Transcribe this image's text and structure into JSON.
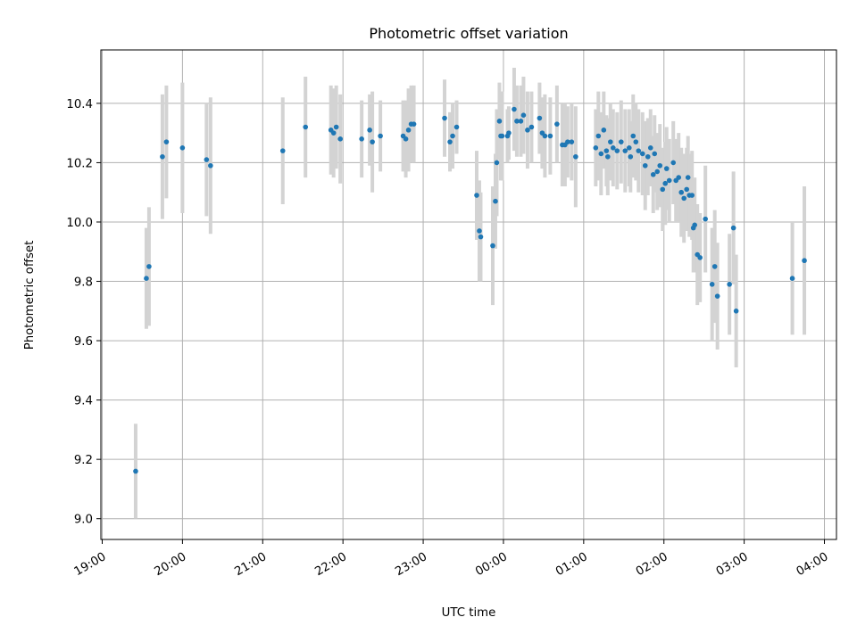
{
  "chart_data": {
    "type": "scatter",
    "title": "Photometric offset variation",
    "xlabel": "UTC time",
    "ylabel": "Photometric offset",
    "xlim": [
      "18:59",
      "04:09"
    ],
    "ylim": [
      8.93,
      10.58
    ],
    "x_ticks": [
      "19:00",
      "20:00",
      "21:00",
      "22:00",
      "23:00",
      "00:00",
      "01:00",
      "02:00",
      "03:00",
      "04:00"
    ],
    "y_ticks": [
      "9.0",
      "9.2",
      "9.4",
      "9.6",
      "9.8",
      "10.0",
      "10.2",
      "10.4"
    ],
    "grid": true,
    "colors": {
      "point": "#1f77b4",
      "errorbar": "#d3d3d3",
      "grid": "#b0b0b0"
    },
    "series": [
      {
        "points": [
          [
            "19:25",
            9.16,
            0.16
          ],
          [
            "19:33",
            9.81,
            0.17
          ],
          [
            "19:35",
            9.85,
            0.2
          ],
          [
            "19:45",
            10.22,
            0.21
          ],
          [
            "19:48",
            10.27,
            0.19
          ],
          [
            "20:00",
            10.25,
            0.22
          ],
          [
            "20:18",
            10.21,
            0.19
          ],
          [
            "20:21",
            10.19,
            0.23
          ],
          [
            "21:15",
            10.24,
            0.18
          ],
          [
            "21:32",
            10.32,
            0.17
          ],
          [
            "21:51",
            10.31,
            0.15
          ],
          [
            "21:53",
            10.3,
            0.15
          ],
          [
            "21:55",
            10.32,
            0.14
          ],
          [
            "21:58",
            10.28,
            0.15
          ],
          [
            "22:14",
            10.28,
            0.13
          ],
          [
            "22:20",
            10.31,
            0.12
          ],
          [
            "22:22",
            10.27,
            0.17
          ],
          [
            "22:28",
            10.29,
            0.12
          ],
          [
            "22:45",
            10.29,
            0.12
          ],
          [
            "22:47",
            10.28,
            0.13
          ],
          [
            "22:49",
            10.31,
            0.14
          ],
          [
            "22:51",
            10.33,
            0.13
          ],
          [
            "22:53",
            10.33,
            0.13
          ],
          [
            "23:16",
            10.35,
            0.13
          ],
          [
            "23:20",
            10.27,
            0.1
          ],
          [
            "23:22",
            10.29,
            0.11
          ],
          [
            "23:25",
            10.32,
            0.09
          ],
          [
            "23:40",
            10.09,
            0.15
          ],
          [
            "23:42",
            9.97,
            0.17
          ],
          [
            "23:43",
            9.95,
            0.15
          ],
          [
            "23:52",
            9.92,
            0.2
          ],
          [
            "23:54",
            10.07,
            0.16
          ],
          [
            "23:55",
            10.2,
            0.18
          ],
          [
            "23:57",
            10.34,
            0.13
          ],
          [
            "23:58",
            10.29,
            0.15
          ],
          [
            "23:59",
            10.29,
            0.15
          ],
          [
            "00:03",
            10.29,
            0.09
          ],
          [
            "00:04",
            10.3,
            0.09
          ],
          [
            "00:08",
            10.38,
            0.14
          ],
          [
            "00:10",
            10.34,
            0.12
          ],
          [
            "00:13",
            10.34,
            0.12
          ],
          [
            "00:15",
            10.36,
            0.13
          ],
          [
            "00:18",
            10.31,
            0.13
          ],
          [
            "00:21",
            10.32,
            0.12
          ],
          [
            "00:27",
            10.35,
            0.12
          ],
          [
            "00:29",
            10.3,
            0.12
          ],
          [
            "00:31",
            10.29,
            0.14
          ],
          [
            "00:35",
            10.29,
            0.13
          ],
          [
            "00:40",
            10.33,
            0.13
          ],
          [
            "00:44",
            10.26,
            0.14
          ],
          [
            "00:46",
            10.26,
            0.14
          ],
          [
            "00:48",
            10.27,
            0.12
          ],
          [
            "00:51",
            10.27,
            0.13
          ],
          [
            "00:54",
            10.22,
            0.17
          ],
          [
            "01:09",
            10.25,
            0.13
          ],
          [
            "01:11",
            10.29,
            0.15
          ],
          [
            "01:13",
            10.23,
            0.14
          ],
          [
            "01:15",
            10.31,
            0.13
          ],
          [
            "01:17",
            10.24,
            0.12
          ],
          [
            "01:18",
            10.22,
            0.13
          ],
          [
            "01:20",
            10.27,
            0.13
          ],
          [
            "01:22",
            10.25,
            0.13
          ],
          [
            "01:25",
            10.24,
            0.13
          ],
          [
            "01:28",
            10.27,
            0.14
          ],
          [
            "01:31",
            10.24,
            0.14
          ],
          [
            "01:34",
            10.25,
            0.13
          ],
          [
            "01:35",
            10.22,
            0.12
          ],
          [
            "01:37",
            10.29,
            0.14
          ],
          [
            "01:39",
            10.27,
            0.13
          ],
          [
            "01:41",
            10.24,
            0.14
          ],
          [
            "01:44",
            10.23,
            0.14
          ],
          [
            "01:46",
            10.19,
            0.15
          ],
          [
            "01:48",
            10.22,
            0.13
          ],
          [
            "01:50",
            10.25,
            0.13
          ],
          [
            "01:52",
            10.16,
            0.13
          ],
          [
            "01:53",
            10.23,
            0.13
          ],
          [
            "01:55",
            10.17,
            0.13
          ],
          [
            "01:57",
            10.19,
            0.14
          ],
          [
            "01:59",
            10.11,
            0.14
          ],
          [
            "02:01",
            10.13,
            0.14
          ],
          [
            "02:02",
            10.18,
            0.14
          ],
          [
            "02:04",
            10.14,
            0.14
          ],
          [
            "02:07",
            10.2,
            0.14
          ],
          [
            "02:09",
            10.14,
            0.14
          ],
          [
            "02:11",
            10.15,
            0.15
          ],
          [
            "02:13",
            10.1,
            0.15
          ],
          [
            "02:15",
            10.08,
            0.15
          ],
          [
            "02:17",
            10.11,
            0.14
          ],
          [
            "02:18",
            10.15,
            0.14
          ],
          [
            "02:19",
            10.09,
            0.14
          ],
          [
            "02:21",
            10.09,
            0.15
          ],
          [
            "02:22",
            9.98,
            0.15
          ],
          [
            "02:23",
            9.99,
            0.16
          ],
          [
            "02:25",
            9.89,
            0.17
          ],
          [
            "02:27",
            9.88,
            0.15
          ],
          [
            "02:31",
            10.01,
            0.18
          ],
          [
            "02:36",
            9.79,
            0.19
          ],
          [
            "02:38",
            9.85,
            0.19
          ],
          [
            "02:40",
            9.75,
            0.18
          ],
          [
            "02:49",
            9.79,
            0.17
          ],
          [
            "02:52",
            9.98,
            0.19
          ],
          [
            "02:54",
            9.7,
            0.19
          ],
          [
            "03:36",
            9.81,
            0.19
          ],
          [
            "03:45",
            9.87,
            0.25
          ]
        ]
      }
    ]
  }
}
